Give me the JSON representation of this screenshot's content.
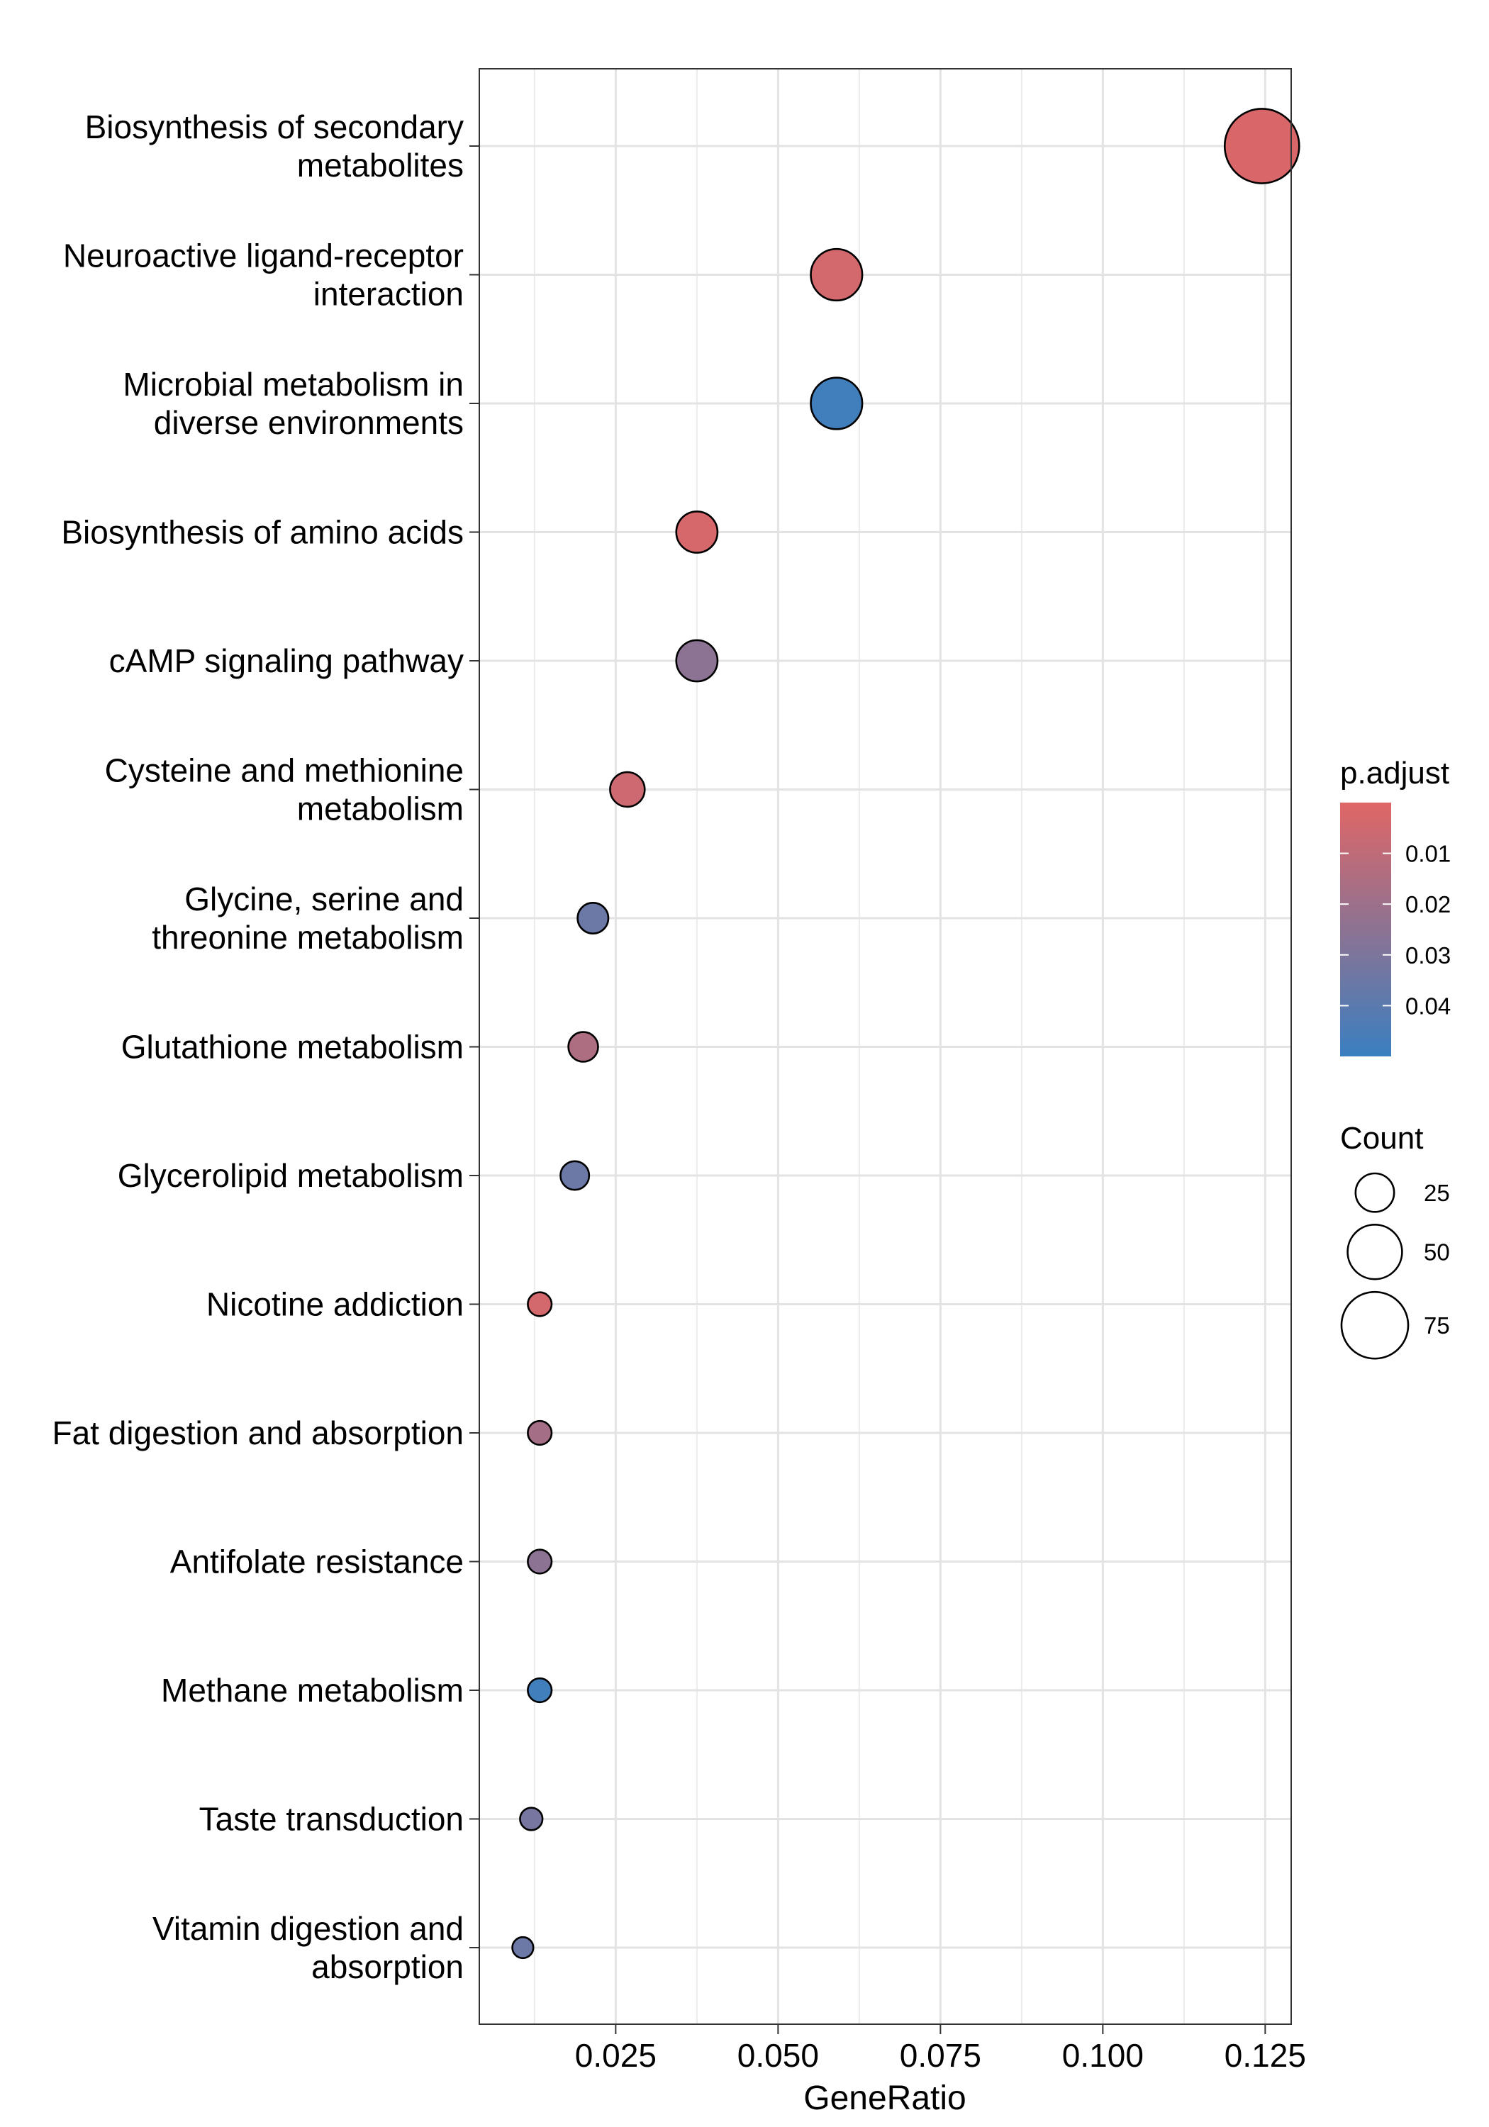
{
  "chart_data": {
    "type": "scatter",
    "xlabel": "GeneRatio",
    "ylabel": "",
    "xlim": [
      0.004,
      0.129
    ],
    "xticks": [
      0.025,
      0.05,
      0.075,
      0.1,
      0.125
    ],
    "xtick_labels": [
      "0.025",
      "0.050",
      "0.075",
      "0.100",
      "0.125"
    ],
    "grid": true,
    "categories": [
      [
        "Biosynthesis of secondary",
        "metabolites"
      ],
      [
        "Neuroactive ligand-receptor",
        "interaction"
      ],
      [
        "Microbial metabolism in",
        "diverse environments"
      ],
      [
        "Biosynthesis of amino acids"
      ],
      [
        "cAMP signaling pathway"
      ],
      [
        "Cysteine and methionine",
        "metabolism"
      ],
      [
        "Glycine, serine and",
        "threonine metabolism"
      ],
      [
        "Glutathione metabolism"
      ],
      [
        "Glycerolipid metabolism"
      ],
      [
        "Nicotine addiction"
      ],
      [
        "Fat digestion and absorption"
      ],
      [
        "Antifolate resistance"
      ],
      [
        "Methane metabolism"
      ],
      [
        "Taste transduction"
      ],
      [
        "Vitamin digestion and",
        "absorption"
      ]
    ],
    "points": [
      {
        "x": 0.1245,
        "count": 88,
        "p_adjust": 0.002
      },
      {
        "x": 0.059,
        "count": 42,
        "p_adjust": 0.004
      },
      {
        "x": 0.059,
        "count": 42,
        "p_adjust": 0.048
      },
      {
        "x": 0.0375,
        "count": 27,
        "p_adjust": 0.003
      },
      {
        "x": 0.0375,
        "count": 27,
        "p_adjust": 0.025
      },
      {
        "x": 0.0268,
        "count": 19,
        "p_adjust": 0.006
      },
      {
        "x": 0.0215,
        "count": 15,
        "p_adjust": 0.035
      },
      {
        "x": 0.02,
        "count": 14,
        "p_adjust": 0.015
      },
      {
        "x": 0.0187,
        "count": 13,
        "p_adjust": 0.035
      },
      {
        "x": 0.0133,
        "count": 9,
        "p_adjust": 0.004
      },
      {
        "x": 0.0133,
        "count": 9,
        "p_adjust": 0.018
      },
      {
        "x": 0.0133,
        "count": 9,
        "p_adjust": 0.025
      },
      {
        "x": 0.0133,
        "count": 9,
        "p_adjust": 0.048
      },
      {
        "x": 0.012,
        "count": 8,
        "p_adjust": 0.032
      },
      {
        "x": 0.0107,
        "count": 7,
        "p_adjust": 0.035
      }
    ],
    "color_legend": {
      "title": "p.adjust",
      "range": [
        0.0,
        0.05
      ],
      "low_color": "#e06666",
      "high_color": "#3a7fc0",
      "ticks": [
        0.01,
        0.02,
        0.03,
        0.04
      ],
      "tick_labels": [
        "0.01",
        "0.02",
        "0.03",
        "0.04"
      ],
      "placement": "right"
    },
    "size_legend": {
      "title": "Count",
      "values": [
        25,
        50,
        75
      ],
      "labels": [
        "25",
        "50",
        "75"
      ],
      "placement": "right"
    }
  }
}
